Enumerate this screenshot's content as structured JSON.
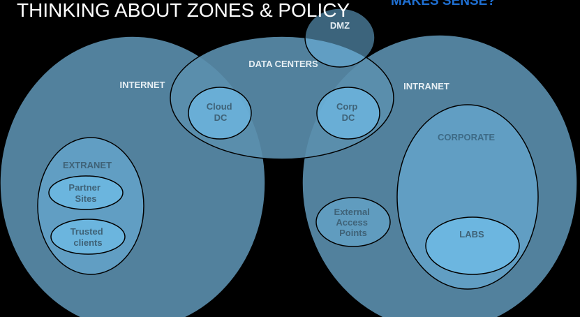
{
  "slide": {
    "title": "THINKING ABOUT ZONES & POLICY",
    "subtitle": "MAKES SENSE?"
  },
  "zones": {
    "internet": "INTERNET",
    "data_centers": "DATA CENTERS",
    "dmz": "DMZ",
    "intranet": "INTRANET",
    "extranet": "EXTRANET",
    "corporate": "CORPORATE",
    "labs": "LABS"
  },
  "nodes": {
    "cloud_dc": [
      "Cloud",
      "DC"
    ],
    "corp_dc": [
      "Corp",
      "DC"
    ],
    "partner_sites": [
      "Partner",
      "Sites"
    ],
    "trusted_clients": [
      "Trusted",
      "clients"
    ],
    "external_access_points": [
      "External",
      "Access",
      "Points"
    ]
  },
  "colors": {
    "background": "#000000",
    "outer_zone_fill": "#5b8fae",
    "inner_zone_fill": "#6db7e1",
    "outline": "#000000",
    "title": "#ffffff",
    "subtitle": "#1f6fd1"
  }
}
